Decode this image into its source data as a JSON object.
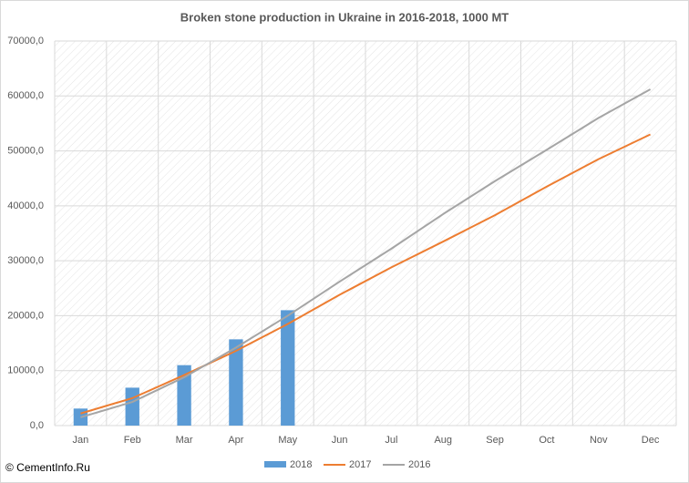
{
  "chart_data": {
    "type": "combo",
    "title": "Broken stone production in Ukraine in 2016-2018,  1000  MT",
    "watermark": "© CementInfo.Ru",
    "categories": [
      "Jan",
      "Feb",
      "Mar",
      "Apr",
      "May",
      "Jun",
      "Jul",
      "Aug",
      "Sep",
      "Oct",
      "Nov",
      "Dec"
    ],
    "series": [
      {
        "name": "2018",
        "type": "bar",
        "color": "#5b9bd5",
        "values": [
          3100,
          6900,
          11000,
          15700,
          21000,
          null,
          null,
          null,
          null,
          null,
          null,
          null
        ]
      },
      {
        "name": "2017",
        "type": "line",
        "color": "#ed7d31",
        "values": [
          2200,
          5000,
          9200,
          13600,
          18500,
          23800,
          28800,
          33500,
          38300,
          43500,
          48500,
          53000
        ]
      },
      {
        "name": "2016",
        "type": "line",
        "color": "#a5a5a5",
        "values": [
          1500,
          4300,
          8800,
          14200,
          20000,
          26200,
          32200,
          38500,
          44500,
          50200,
          56000,
          61200
        ]
      }
    ],
    "ylim": [
      0,
      70000
    ],
    "yticks": [
      {
        "value": 0,
        "label": "0,0"
      },
      {
        "value": 10000,
        "label": "10000,0"
      },
      {
        "value": 20000,
        "label": "20000,0"
      },
      {
        "value": 30000,
        "label": "30000,0"
      },
      {
        "value": 40000,
        "label": "40000,0"
      },
      {
        "value": 50000,
        "label": "50000,0"
      },
      {
        "value": 60000,
        "label": "60000,0"
      },
      {
        "value": 70000,
        "label": "70000,0"
      }
    ],
    "grid": true
  }
}
